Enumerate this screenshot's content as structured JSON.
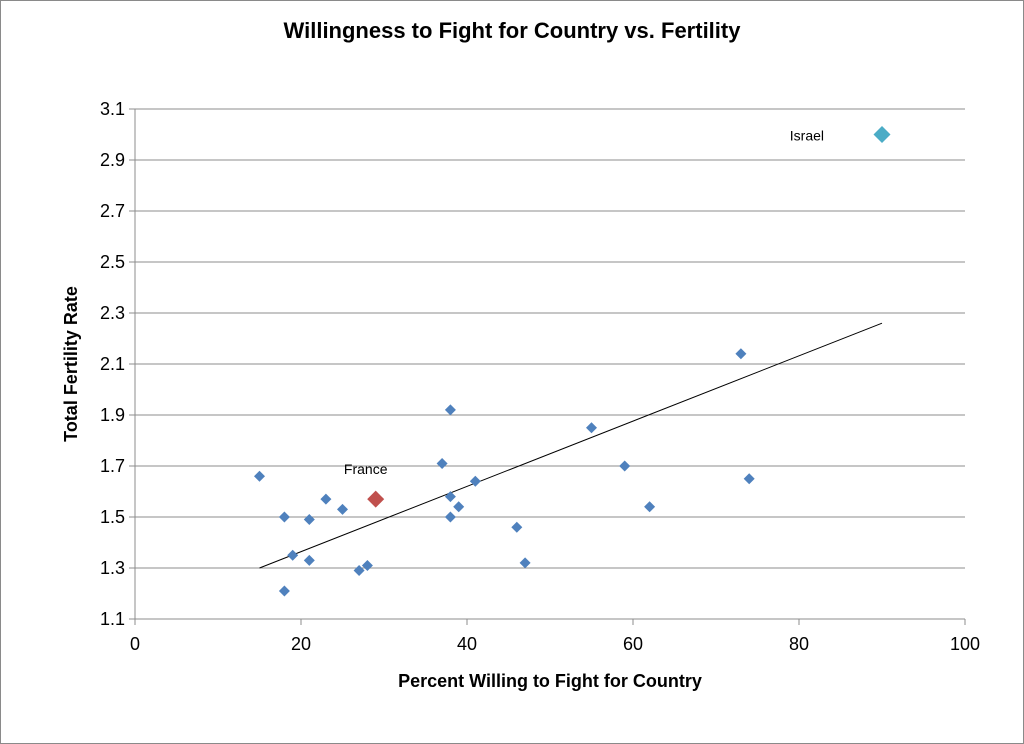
{
  "chart_data": {
    "type": "scatter",
    "title": "Willingness to Fight for Country vs. Fertility",
    "xlabel": "Percent Willing to Fight for Country",
    "ylabel": "Total Fertility Rate",
    "xlim": [
      0,
      100
    ],
    "ylim": [
      1.1,
      3.1
    ],
    "x_ticks": [
      "0",
      "20",
      "40",
      "60",
      "80",
      "100"
    ],
    "y_ticks": [
      "1.1",
      "1.3",
      "1.5",
      "1.7",
      "1.9",
      "2.1",
      "2.3",
      "2.5",
      "2.7",
      "2.9",
      "3.1"
    ],
    "grid": "horizontal",
    "colors": {
      "default": "#4f81bd",
      "France": "#c0504d",
      "Israel": "#4bacc6",
      "trendline": "#000000"
    },
    "points": [
      {
        "x": 15,
        "y": 1.66
      },
      {
        "x": 18,
        "y": 1.5
      },
      {
        "x": 18,
        "y": 1.21
      },
      {
        "x": 19,
        "y": 1.35
      },
      {
        "x": 21,
        "y": 1.49
      },
      {
        "x": 21,
        "y": 1.33
      },
      {
        "x": 23,
        "y": 1.57
      },
      {
        "x": 25,
        "y": 1.53
      },
      {
        "x": 27,
        "y": 1.29
      },
      {
        "x": 28,
        "y": 1.31
      },
      {
        "x": 37,
        "y": 1.71
      },
      {
        "x": 38,
        "y": 1.92
      },
      {
        "x": 38,
        "y": 1.58
      },
      {
        "x": 38,
        "y": 1.5
      },
      {
        "x": 39,
        "y": 1.54
      },
      {
        "x": 41,
        "y": 1.64
      },
      {
        "x": 46,
        "y": 1.46
      },
      {
        "x": 47,
        "y": 1.32
      },
      {
        "x": 55,
        "y": 1.85
      },
      {
        "x": 59,
        "y": 1.7
      },
      {
        "x": 62,
        "y": 1.54
      },
      {
        "x": 73,
        "y": 2.14
      },
      {
        "x": 74,
        "y": 1.65
      }
    ],
    "highlighted": [
      {
        "label": "France",
        "x": 29,
        "y": 1.57
      },
      {
        "label": "Israel",
        "x": 90,
        "y": 3.0
      }
    ],
    "trendline": {
      "x": [
        15,
        90
      ],
      "y": [
        1.3,
        2.26
      ]
    }
  }
}
